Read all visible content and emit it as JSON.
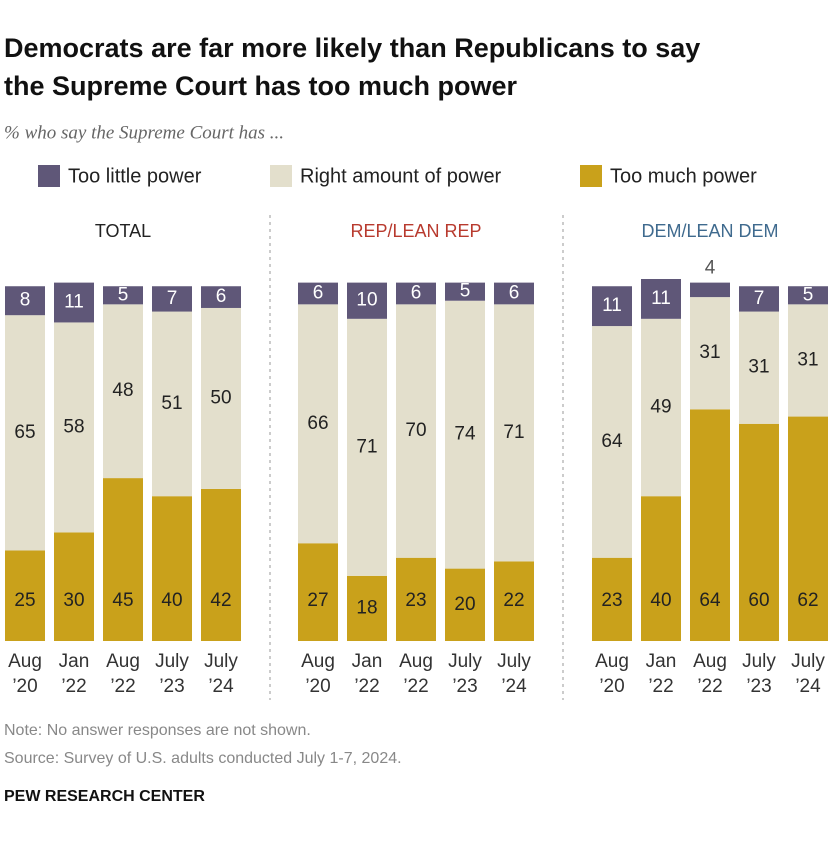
{
  "title": "Democrats are far more likely than Republicans to say the Supreme Court has too much power",
  "title_lines": [
    "Democrats are far more likely than Republicans to say",
    "the Supreme Court has too much power"
  ],
  "subtitle": "% who say the Supreme Court has ...",
  "note": "Note: No answer responses are not shown.",
  "source": "Source: Survey of U.S. adults conducted July 1-7, 2024.",
  "credit": "PEW RESEARCH CENTER",
  "chart_data": [
    {
      "type": "bar",
      "stacked": true,
      "title": "TOTAL",
      "title_color": "#222222",
      "categories": [
        "Aug ’20",
        "Jan ’22",
        "Aug ’22",
        "July ’23",
        "July ’24"
      ],
      "series": [
        {
          "name": "Too much power",
          "color": "#c9a11b",
          "values": [
            25,
            30,
            45,
            40,
            42
          ]
        },
        {
          "name": "Right amount of power",
          "color": "#e3dfcc",
          "values": [
            65,
            58,
            48,
            51,
            50
          ]
        },
        {
          "name": "Too little power",
          "color": "#5f5778",
          "values": [
            8,
            11,
            5,
            7,
            6
          ]
        }
      ]
    },
    {
      "type": "bar",
      "stacked": true,
      "title": "REP/LEAN REP",
      "title_color": "#b83a2e",
      "categories": [
        "Aug ’20",
        "Jan ’22",
        "Aug ’22",
        "July ’23",
        "July ’24"
      ],
      "series": [
        {
          "values": [
            27,
            18,
            23,
            20,
            22
          ]
        },
        {
          "values": [
            66,
            71,
            70,
            74,
            71
          ]
        },
        {
          "values": [
            6,
            10,
            6,
            5,
            6
          ]
        }
      ]
    },
    {
      "type": "bar",
      "stacked": true,
      "title": "DEM/LEAN DEM",
      "title_color": "#3f6a8e",
      "categories": [
        "Aug ’20",
        "Jan ’22",
        "Aug ’22",
        "July ’23",
        "July ’24"
      ],
      "series": [
        {
          "values": [
            23,
            40,
            64,
            60,
            62
          ]
        },
        {
          "values": [
            64,
            49,
            31,
            31,
            31
          ]
        },
        {
          "values": [
            11,
            11,
            4,
            7,
            5
          ]
        }
      ]
    }
  ]
}
